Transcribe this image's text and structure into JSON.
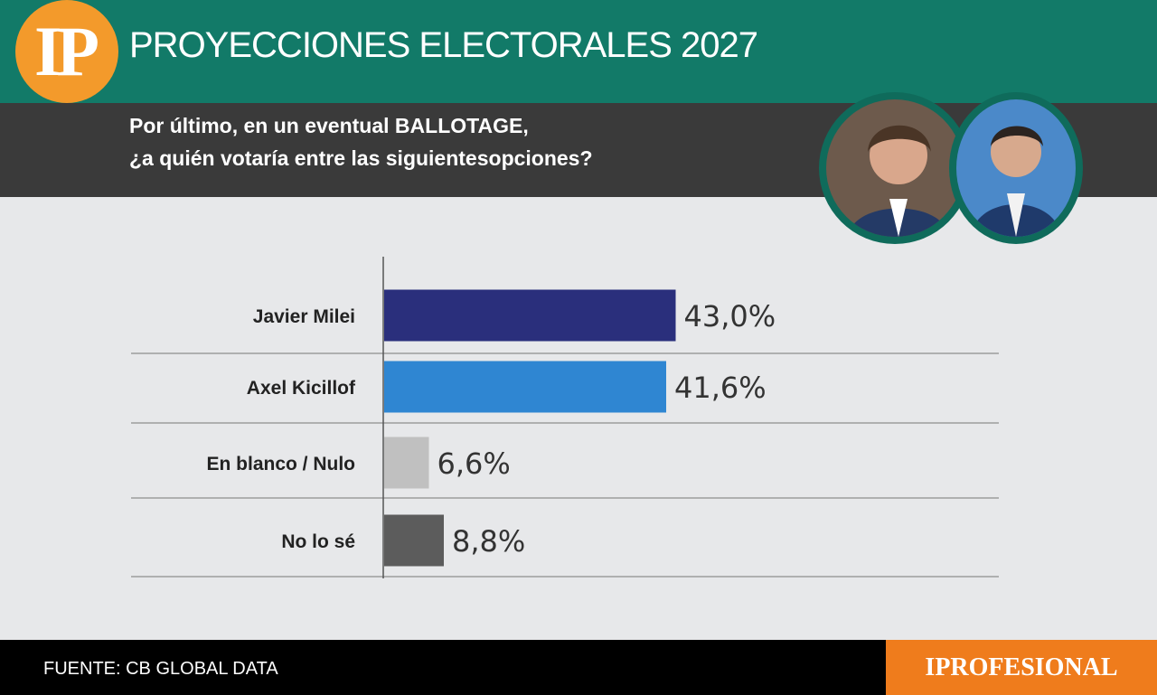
{
  "header": {
    "logo_text": "IP",
    "title": "PROYECCIONES ELECTORALES 2027"
  },
  "question": {
    "line1": "Por último, en un eventual BALLOTAGE,",
    "line2": "¿a quién votaría entre las siguientesopciones?"
  },
  "photos": {
    "left_icon": "person-photo-icon",
    "right_icon": "person-photo-icon"
  },
  "footer": {
    "source": "FUENTE: CB GLOBAL DATA",
    "brand": "IPROFESIONAL"
  },
  "colors": {
    "header_green": "#127a68",
    "logo_orange": "#f39a2b",
    "brand_orange": "#ef7c1c"
  },
  "chart_data": {
    "type": "bar",
    "orientation": "horizontal",
    "categories": [
      "Javier Milei",
      "Axel Kicillof",
      "En blanco / Nulo",
      "No lo sé"
    ],
    "values": [
      43.0,
      41.6,
      6.6,
      8.8
    ],
    "value_labels": [
      "43,0%",
      "41,6%",
      "6,6%",
      "8,8%"
    ],
    "colors": [
      "#2a2f7c",
      "#2f86d2",
      "#c0c0c0",
      "#5c5c5c"
    ],
    "grid": true
  }
}
